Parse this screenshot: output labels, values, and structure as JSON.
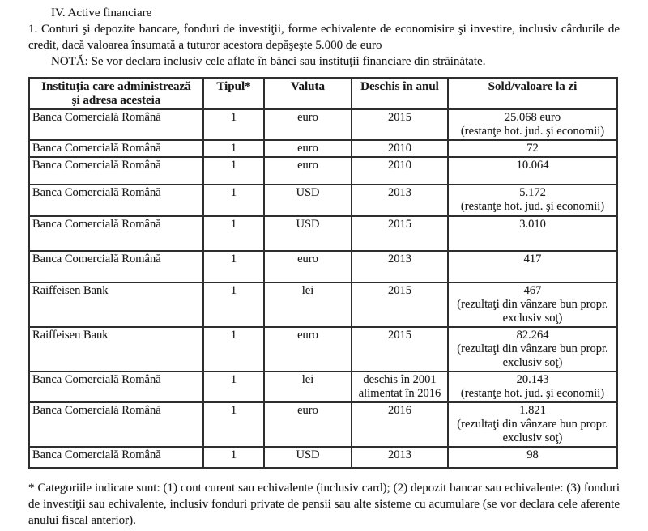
{
  "doc": {
    "section_title": "IV. Active financiare",
    "intro": "1. Conturi şi depozite bancare, fonduri de investiţii, forme echivalente de economisire şi investire, inclusiv cârdurile de credit, dacă valoarea însumată a tuturor acestora depăşeşte 5.000 de euro",
    "note": "NOTĂ: Se vor declara inclusiv cele aflate în bănci sau instituţii financiare din străinătate.",
    "footnote": "* Categoriile indicate sunt: (1) cont curent sau echivalente (inclusiv card); (2) depozit bancar sau echivalente: (3) fonduri de investiţii sau echivalente, inclusiv fonduri private de pensii sau alte sisteme cu acumulare (se vor declara cele aferente anului fiscal anterior)."
  },
  "table": {
    "headers": [
      "Instituţia care administrează\nşi adresa acesteia",
      "Tipul*",
      "Valuta",
      "Deschis în anul",
      "Sold/valoare la zi"
    ],
    "rows": [
      {
        "institution": "Banca Comercială Română",
        "type": "1",
        "currency": "euro",
        "opened": "2015",
        "balance": "25.068 euro\n(restanţe hot. jud. şi economii)"
      },
      {
        "institution": "Banca Comercială Română",
        "type": "1",
        "currency": "euro",
        "opened": "2010",
        "balance": "72"
      },
      {
        "institution": "Banca Comercială Română",
        "type": "1",
        "currency": "euro",
        "opened": "2010",
        "balance": "10.064"
      },
      {
        "institution": "Banca Comercială Română",
        "type": "1",
        "currency": "USD",
        "opened": "2013",
        "balance": "5.172\n(restanţe hot. jud. şi economii)"
      },
      {
        "institution": "Banca Comercială Română",
        "type": "1",
        "currency": "USD",
        "opened": "2015",
        "balance": "3.010"
      },
      {
        "institution": "Banca Comercială Română",
        "type": "1",
        "currency": "euro",
        "opened": "2013",
        "balance": "417"
      },
      {
        "institution": "Raiffeisen Bank",
        "type": "1",
        "currency": "lei",
        "opened": "2015",
        "balance": "467\n(rezultaţi din vânzare bun propr.\nexclusiv soţ)"
      },
      {
        "institution": "Raiffeisen Bank",
        "type": "1",
        "currency": "euro",
        "opened": "2015",
        "balance": "82.264\n(rezultaţi din vânzare bun propr.\nexclusiv soţ)"
      },
      {
        "institution": "Banca Comercială Română",
        "type": "1",
        "currency": "lei",
        "opened": "deschis în 2001\nalimentat în 2016",
        "balance": "20.143\n(restanţe hot. jud. şi economii)"
      },
      {
        "institution": "Banca Comercială Română",
        "type": "1",
        "currency": "euro",
        "opened": "2016",
        "balance": "1.821\n(rezultaţi din vânzare bun propr.\nexclusiv soţ)"
      },
      {
        "institution": "Banca Comercială Română",
        "type": "1",
        "currency": "USD",
        "opened": "2013",
        "balance": "98"
      }
    ]
  }
}
